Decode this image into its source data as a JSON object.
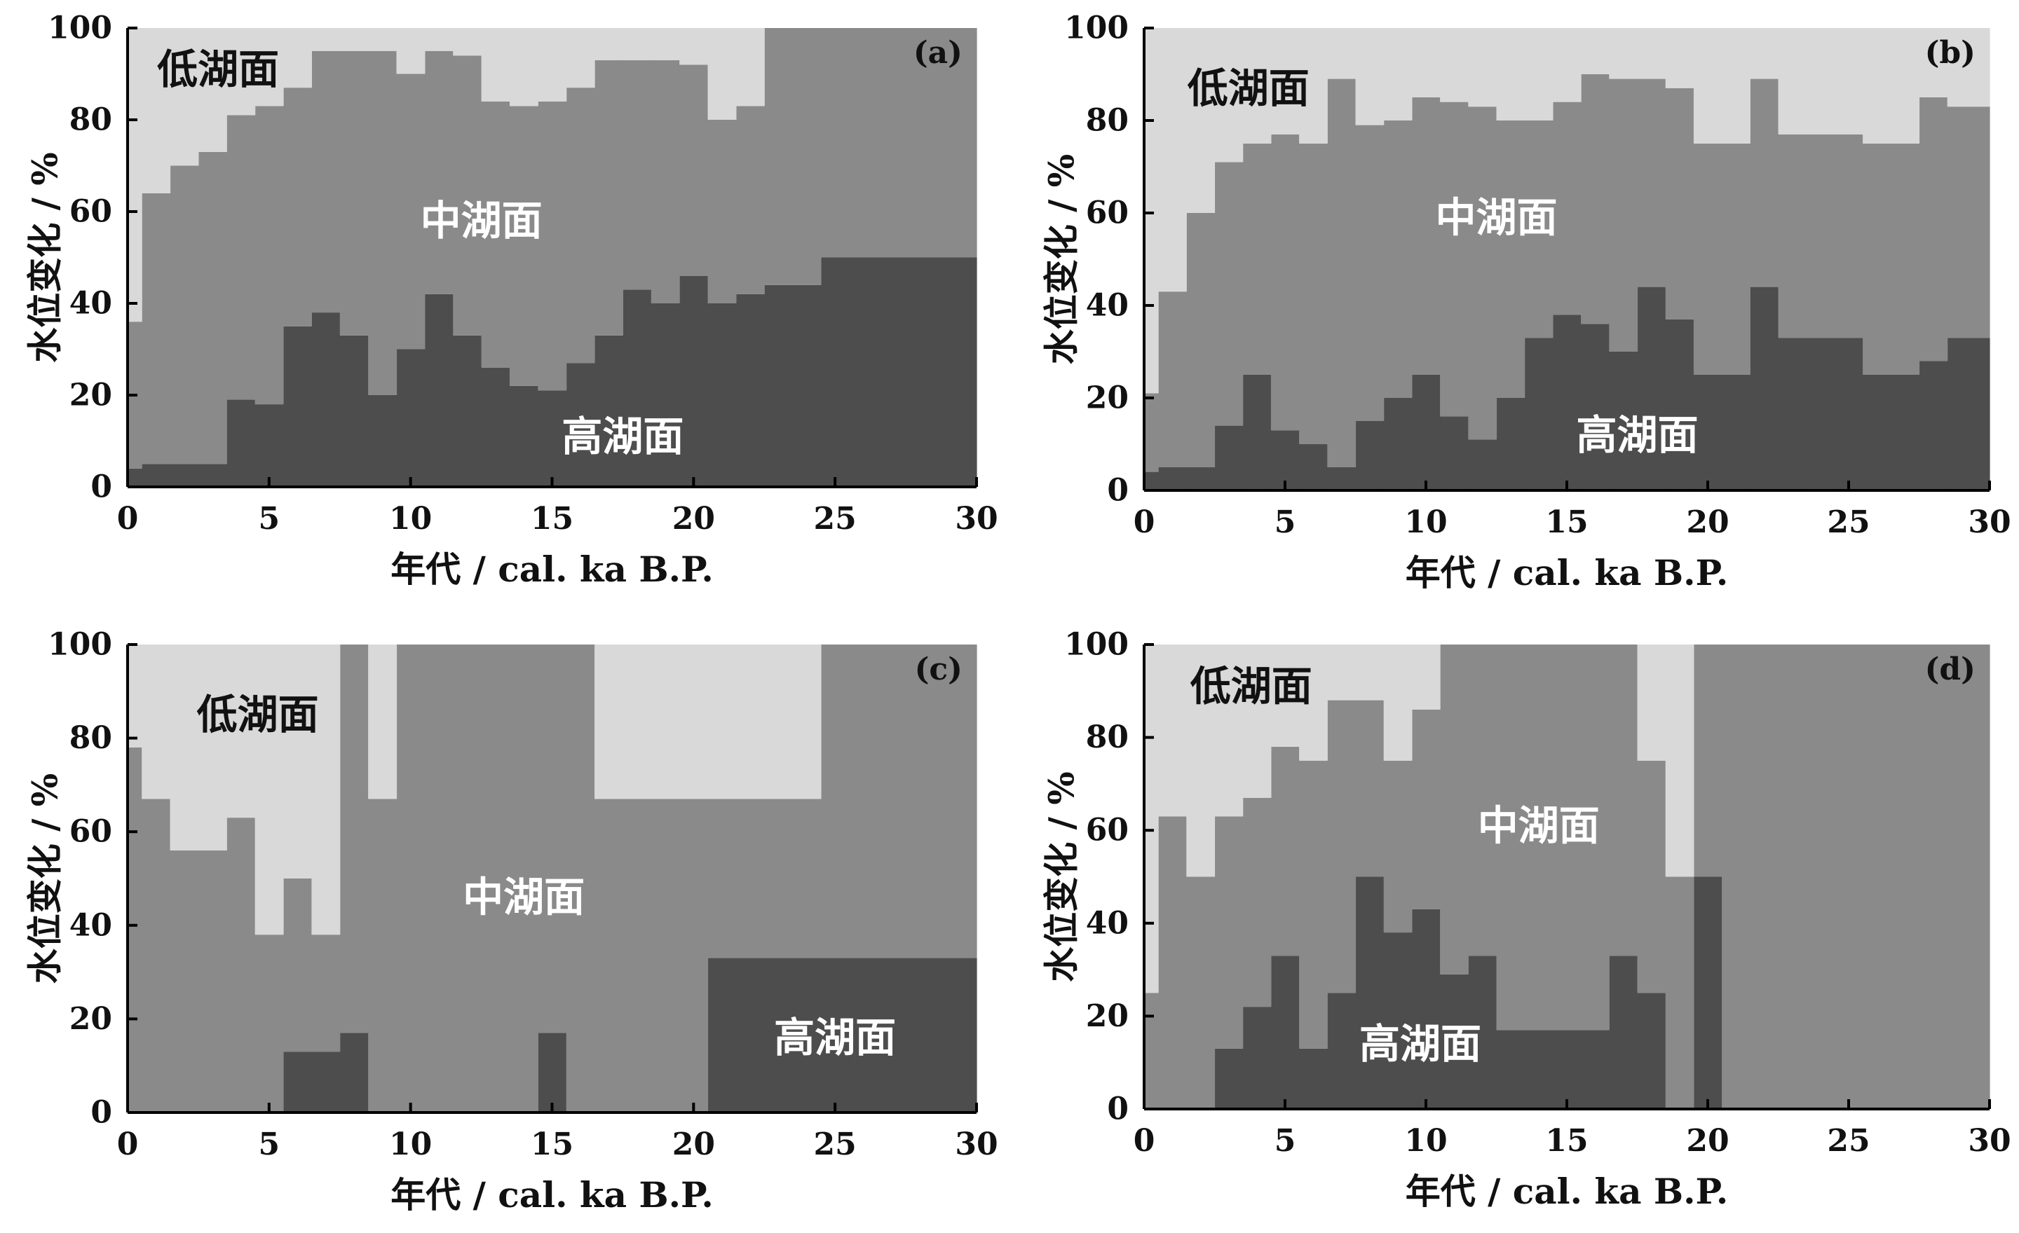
{
  "colors": {
    "low": "#d9d9d9",
    "mid": "#8a8a8a",
    "high": "#4d4d4d",
    "axis": "#000000",
    "label_dark": "#111111",
    "label_light": "#ffffff"
  },
  "chart_data": [
    {
      "type": "area",
      "panel_label": "(a)",
      "xlabel": "年代 / cal. ka B.P.",
      "ylabel": "水位变化 / %",
      "xlim": [
        0,
        30
      ],
      "ylim": [
        0,
        100
      ],
      "xticks": [
        "0",
        "5",
        "10",
        "15",
        "20",
        "25",
        "30"
      ],
      "yticks": [
        "0",
        "20",
        "40",
        "60",
        "80",
        "100"
      ],
      "bin_edges": [
        0,
        0.5,
        1.5,
        2.5,
        3.5,
        4.5,
        5.5,
        6.5,
        7.5,
        8.5,
        9.5,
        10.5,
        11.5,
        12.5,
        13.5,
        14.5,
        15.5,
        16.5,
        17.5,
        18.5,
        19.5,
        20.5,
        21.5,
        22.5,
        23.5,
        24.5,
        25.5,
        26.5,
        27.5,
        28.5,
        29.5,
        30
      ],
      "series": [
        {
          "name": "高湖面",
          "values": [
            4,
            5,
            5,
            5,
            19,
            18,
            35,
            38,
            33,
            20,
            30,
            42,
            33,
            26,
            22,
            21,
            27,
            33,
            43,
            40,
            46,
            40,
            42,
            44,
            44,
            50,
            50,
            50,
            50,
            50,
            50
          ]
        },
        {
          "name": "中湖面",
          "values": [
            32,
            59,
            65,
            68,
            62,
            65,
            52,
            57,
            62,
            75,
            60,
            53,
            61,
            58,
            61,
            63,
            60,
            60,
            50,
            53,
            46,
            40,
            41,
            56,
            56,
            50,
            50,
            50,
            50,
            50,
            50
          ]
        },
        {
          "name": "低湖面",
          "values": [
            64,
            36,
            30,
            27,
            19,
            17,
            13,
            5,
            5,
            5,
            10,
            5,
            6,
            16,
            17,
            16,
            13,
            7,
            7,
            7,
            8,
            20,
            17,
            0,
            0,
            0,
            0,
            0,
            0,
            0,
            0
          ]
        }
      ],
      "region_labels": [
        {
          "series": "低湖面",
          "x": 3.2,
          "y": 91,
          "color": "dark"
        },
        {
          "series": "中湖面",
          "x": 12.5,
          "y": 58,
          "color": "light"
        },
        {
          "series": "高湖面",
          "x": 17.5,
          "y": 11,
          "color": "light"
        }
      ]
    },
    {
      "type": "area",
      "panel_label": "(b)",
      "xlabel": "年代 / cal. ka B.P.",
      "ylabel": "水位变化 / %",
      "xlim": [
        0,
        30
      ],
      "ylim": [
        0,
        100
      ],
      "xticks": [
        "0",
        "5",
        "10",
        "15",
        "20",
        "25",
        "30"
      ],
      "yticks": [
        "0",
        "20",
        "40",
        "60",
        "80",
        "100"
      ],
      "bin_edges": [
        0,
        0.5,
        1.5,
        2.5,
        3.5,
        4.5,
        5.5,
        6.5,
        7.5,
        8.5,
        9.5,
        10.5,
        11.5,
        12.5,
        13.5,
        14.5,
        15.5,
        16.5,
        17.5,
        18.5,
        19.5,
        20.5,
        21.5,
        22.5,
        23.5,
        24.5,
        25.5,
        26.5,
        27.5,
        28.5,
        29.5,
        30
      ],
      "series": [
        {
          "name": "高湖面",
          "values": [
            4,
            5,
            5,
            14,
            25,
            13,
            10,
            5,
            15,
            20,
            25,
            16,
            11,
            20,
            33,
            38,
            36,
            30,
            44,
            37,
            25,
            25,
            44,
            33,
            33,
            33,
            25,
            25,
            28,
            33,
            33
          ]
        },
        {
          "name": "中湖面",
          "values": [
            17,
            38,
            55,
            57,
            50,
            64,
            65,
            84,
            64,
            60,
            60,
            68,
            72,
            60,
            47,
            46,
            54,
            59,
            45,
            50,
            50,
            50,
            45,
            44,
            44,
            44,
            50,
            50,
            57,
            50,
            50
          ]
        },
        {
          "name": "低湖面",
          "values": [
            79,
            57,
            40,
            29,
            25,
            23,
            25,
            11,
            21,
            20,
            15,
            16,
            17,
            20,
            20,
            16,
            10,
            11,
            11,
            13,
            25,
            25,
            11,
            23,
            23,
            23,
            25,
            25,
            15,
            17,
            17
          ]
        }
      ],
      "region_labels": [
        {
          "series": "低湖面",
          "x": 3.7,
          "y": 87,
          "color": "dark"
        },
        {
          "series": "中湖面",
          "x": 12.5,
          "y": 59,
          "color": "light"
        },
        {
          "series": "高湖面",
          "x": 17.5,
          "y": 12,
          "color": "light"
        }
      ]
    },
    {
      "type": "area",
      "panel_label": "(c)",
      "xlabel": "年代 / cal. ka B.P.",
      "ylabel": "水位变化 / %",
      "xlim": [
        0,
        30
      ],
      "ylim": [
        0,
        100
      ],
      "xticks": [
        "0",
        "5",
        "10",
        "15",
        "20",
        "25",
        "30"
      ],
      "yticks": [
        "0",
        "20",
        "40",
        "60",
        "80",
        "100"
      ],
      "bin_edges": [
        0,
        0.5,
        1.5,
        2.5,
        3.5,
        4.5,
        5.5,
        6.5,
        7.5,
        8.5,
        9.5,
        10.5,
        11.5,
        12.5,
        13.5,
        14.5,
        15.5,
        16.5,
        17.5,
        18.5,
        19.5,
        20.5,
        21.5,
        22.5,
        23.5,
        24.5,
        25.5,
        26.5,
        27.5,
        28.5,
        29.5,
        30
      ],
      "series": [
        {
          "name": "高湖面",
          "values": [
            0,
            0,
            0,
            0,
            0,
            0,
            13,
            13,
            17,
            0,
            0,
            0,
            0,
            0,
            0,
            17,
            0,
            0,
            0,
            0,
            0,
            33,
            33,
            33,
            33,
            33,
            33,
            33,
            33,
            33,
            33
          ]
        },
        {
          "name": "中湖面",
          "values": [
            78,
            67,
            56,
            56,
            63,
            38,
            37,
            25,
            83,
            67,
            100,
            100,
            100,
            100,
            100,
            83,
            100,
            67,
            67,
            67,
            67,
            34,
            34,
            34,
            34,
            67,
            67,
            67,
            67,
            67,
            67
          ]
        },
        {
          "name": "低湖面",
          "values": [
            22,
            33,
            44,
            44,
            37,
            62,
            50,
            62,
            0,
            33,
            0,
            0,
            0,
            0,
            0,
            0,
            0,
            33,
            33,
            33,
            33,
            33,
            33,
            33,
            33,
            0,
            0,
            0,
            0,
            0,
            0
          ]
        }
      ],
      "region_labels": [
        {
          "series": "低湖面",
          "x": 4.6,
          "y": 85,
          "color": "dark"
        },
        {
          "series": "中湖面",
          "x": 14,
          "y": 46,
          "color": "light"
        },
        {
          "series": "高湖面",
          "x": 25,
          "y": 16,
          "color": "light"
        }
      ]
    },
    {
      "type": "area",
      "panel_label": "(d)",
      "xlabel": "年代 / cal. ka B.P.",
      "ylabel": "水位变化 / %",
      "xlim": [
        0,
        30
      ],
      "ylim": [
        0,
        100
      ],
      "xticks": [
        "0",
        "5",
        "10",
        "15",
        "20",
        "25",
        "30"
      ],
      "yticks": [
        "0",
        "20",
        "40",
        "60",
        "80",
        "100"
      ],
      "bin_edges": [
        0,
        0.5,
        1.5,
        2.5,
        3.5,
        4.5,
        5.5,
        6.5,
        7.5,
        8.5,
        9.5,
        10.5,
        11.5,
        12.5,
        13.5,
        14.5,
        15.5,
        16.5,
        17.5,
        18.5,
        19.5,
        20.5,
        21.5,
        22.5,
        23.5,
        24.5,
        25.5,
        26.5,
        27.5,
        28.5,
        29.5,
        30
      ],
      "series": [
        {
          "name": "高湖面",
          "values": [
            0,
            0,
            0,
            13,
            22,
            33,
            13,
            25,
            50,
            38,
            43,
            29,
            33,
            17,
            17,
            17,
            17,
            33,
            25,
            0,
            50,
            0,
            0,
            0,
            0,
            0,
            0,
            0,
            0,
            0,
            0
          ]
        },
        {
          "name": "中湖面",
          "values": [
            25,
            63,
            50,
            50,
            45,
            45,
            62,
            63,
            38,
            37,
            43,
            71,
            67,
            83,
            83,
            83,
            83,
            67,
            50,
            50,
            50,
            100,
            100,
            100,
            100,
            100,
            100,
            100,
            100,
            100,
            100
          ]
        },
        {
          "name": "低湖面",
          "values": [
            75,
            37,
            50,
            37,
            33,
            22,
            25,
            12,
            12,
            25,
            14,
            0,
            0,
            0,
            0,
            0,
            0,
            0,
            25,
            50,
            0,
            0,
            0,
            0,
            0,
            0,
            0,
            0,
            0,
            0,
            0
          ]
        }
      ],
      "region_labels": [
        {
          "series": "低湖面",
          "x": 3.8,
          "y": 91,
          "color": "dark"
        },
        {
          "series": "中湖面",
          "x": 14,
          "y": 61,
          "color": "light"
        },
        {
          "series": "高湖面",
          "x": 9.8,
          "y": 14,
          "color": "light"
        }
      ]
    }
  ]
}
